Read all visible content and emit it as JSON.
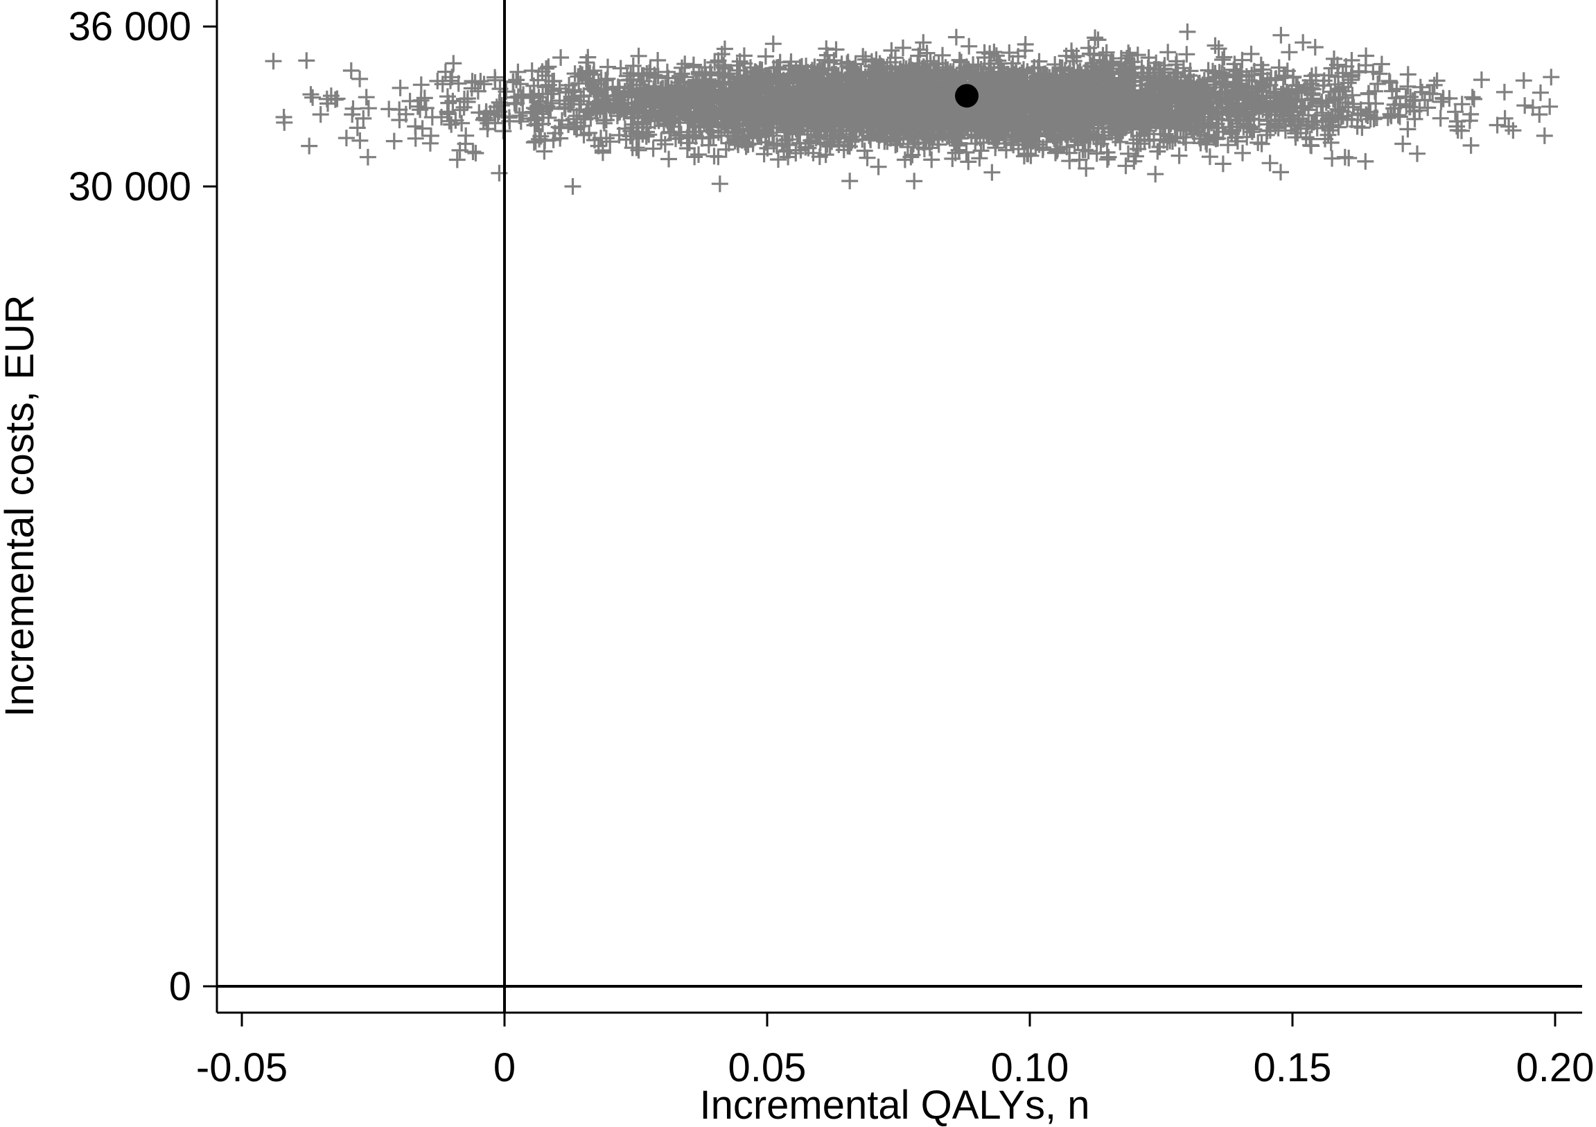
{
  "chart_data": {
    "type": "scatter",
    "xlabel": "Incremental QALYs, n",
    "ylabel": "Incremental costs, EUR",
    "xlim": [
      -0.055,
      0.205
    ],
    "ylim": [
      -1000,
      37000
    ],
    "x_ticks": [
      {
        "value": -0.05,
        "label": "-0.05"
      },
      {
        "value": 0,
        "label": "0"
      },
      {
        "value": 0.05,
        "label": "0.05"
      },
      {
        "value": 0.1,
        "label": "0.10"
      },
      {
        "value": 0.15,
        "label": "0.15"
      },
      {
        "value": 0.2,
        "label": "0.20"
      }
    ],
    "y_ticks": [
      {
        "value": 0,
        "label": "0"
      },
      {
        "value": 30000,
        "label": "30 000"
      },
      {
        "value": 36000,
        "label": "36 000"
      }
    ],
    "reference_lines": {
      "x": 0,
      "y": 0
    },
    "grid": false,
    "point_estimate": {
      "x": 0.088,
      "y": 33400,
      "marker": "filled-circle",
      "color": "#000000"
    },
    "bootstrap_cloud": {
      "marker": "plus",
      "color": "#808080",
      "x_mean": 0.085,
      "x_sd": 0.038,
      "y_mean": 33100,
      "y_sd": 750,
      "count": 5000,
      "x_range": [
        -0.045,
        0.2
      ],
      "y_range": [
        30000,
        35700
      ]
    },
    "outlier_points": [
      {
        "x": -0.044,
        "y": 34700
      },
      {
        "x": -0.042,
        "y": 32600
      },
      {
        "x": -0.035,
        "y": 32700
      },
      {
        "x": -0.033,
        "y": 33400
      },
      {
        "x": -0.029,
        "y": 32700
      },
      {
        "x": -0.028,
        "y": 32200
      },
      {
        "x": -0.026,
        "y": 31100
      },
      {
        "x": -0.022,
        "y": 32900
      },
      {
        "x": -0.021,
        "y": 31700
      },
      {
        "x": -0.018,
        "y": 33200
      },
      {
        "x": -0.014,
        "y": 31900
      },
      {
        "x": -0.012,
        "y": 32600
      },
      {
        "x": -0.01,
        "y": 34100
      },
      {
        "x": -0.009,
        "y": 31000
      },
      {
        "x": -0.007,
        "y": 33300
      },
      {
        "x": -0.006,
        "y": 31300
      },
      {
        "x": -0.004,
        "y": 32500
      },
      {
        "x": -0.001,
        "y": 30500
      },
      {
        "x": 0.013,
        "y": 30000
      },
      {
        "x": 0.041,
        "y": 30100
      },
      {
        "x": 0.078,
        "y": 30200
      },
      {
        "x": 0.086,
        "y": 35600
      },
      {
        "x": 0.113,
        "y": 35500
      },
      {
        "x": 0.13,
        "y": 35800
      },
      {
        "x": 0.152,
        "y": 35400
      },
      {
        "x": 0.172,
        "y": 34200
      },
      {
        "x": 0.177,
        "y": 33800
      },
      {
        "x": 0.181,
        "y": 32800
      },
      {
        "x": 0.186,
        "y": 34000
      },
      {
        "x": 0.189,
        "y": 32300
      },
      {
        "x": 0.192,
        "y": 32100
      },
      {
        "x": 0.197,
        "y": 32700
      },
      {
        "x": 0.198,
        "y": 31900
      },
      {
        "x": 0.16,
        "y": 31100
      },
      {
        "x": 0.171,
        "y": 31600
      },
      {
        "x": 0.164,
        "y": 34900
      }
    ]
  }
}
